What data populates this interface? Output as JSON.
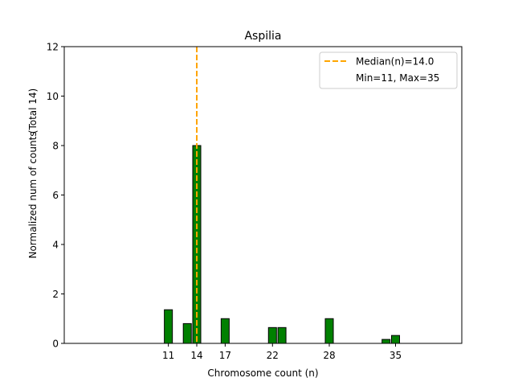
{
  "chart_data": {
    "type": "bar",
    "title": "Aspilia",
    "xlabel": "Chromosome count (n)",
    "ylabel": "Normalized num of counts",
    "ylabel2": "(Total 14)",
    "xlim": [
      0,
      42
    ],
    "ylim": [
      0,
      12
    ],
    "xticks": [
      11,
      14,
      17,
      22,
      28,
      35
    ],
    "yticks": [
      0,
      2,
      4,
      6,
      8,
      10,
      12
    ],
    "bar_color": "#008000",
    "median_color": "#ffa500",
    "bars": [
      {
        "x": 11,
        "value": 1.36
      },
      {
        "x": 13,
        "value": 0.8
      },
      {
        "x": 14,
        "value": 8
      },
      {
        "x": 17,
        "value": 1
      },
      {
        "x": 22,
        "value": 0.64
      },
      {
        "x": 23,
        "value": 0.64
      },
      {
        "x": 28,
        "value": 1
      },
      {
        "x": 34,
        "value": 0.16
      },
      {
        "x": 35,
        "value": 0.32
      }
    ],
    "median": 14.0,
    "legend": {
      "placement": "top-right",
      "entries": [
        "Median(n)=14.0",
        "Min=11, Max=35"
      ]
    }
  }
}
